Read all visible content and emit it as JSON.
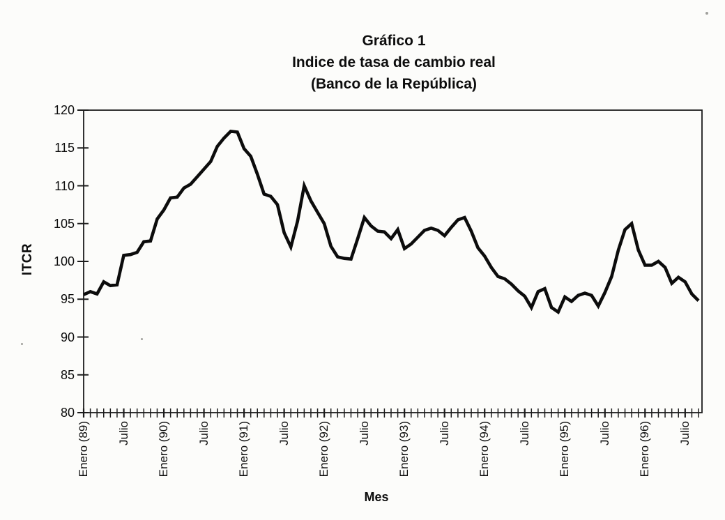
{
  "title": {
    "line1": "Gráfico 1",
    "line2": "Indice de tasa de cambio real",
    "line3": "(Banco de la República)"
  },
  "chart_data": {
    "type": "line",
    "title": "Gráfico 1",
    "subtitle": "Indice de tasa de cambio real (Banco de la República)",
    "xlabel": "Mes",
    "ylabel": "ITCR",
    "ylim": [
      80,
      120
    ],
    "yticks": [
      80,
      85,
      90,
      95,
      100,
      105,
      110,
      115,
      120
    ],
    "grid": false,
    "legend": "none",
    "x_start_month": "Enero 1989",
    "x_end_month": "Septiembre 1996",
    "x_minor_tick_unit": "month",
    "x_label_every_n_months": 6,
    "x_tick_labels": [
      "Enero (89)",
      "Julio",
      "Enero (90)",
      "Julio",
      "Enero (91)",
      "Julio",
      "Enero (92)",
      "Julio",
      "Enero (93)",
      "Julio",
      "Enero (94)",
      "Julio",
      "Enero (95)",
      "Julio",
      "Enero (96)",
      "Julio"
    ],
    "line_color": "#0c0c0c",
    "series": [
      {
        "name": "ITCR",
        "values": [
          95.6,
          96.0,
          95.7,
          97.3,
          96.8,
          96.9,
          100.8,
          100.9,
          101.2,
          102.6,
          102.7,
          105.6,
          106.8,
          108.4,
          108.5,
          109.7,
          110.2,
          111.2,
          112.2,
          113.2,
          115.2,
          116.3,
          117.2,
          117.1,
          114.9,
          113.9,
          111.5,
          108.9,
          108.6,
          107.5,
          103.8,
          101.9,
          105.3,
          110.0,
          108.0,
          106.5,
          105.0,
          102.0,
          100.6,
          100.4,
          100.3,
          103.0,
          105.8,
          104.7,
          104.0,
          103.9,
          103.0,
          104.2,
          101.7,
          102.3,
          103.2,
          104.1,
          104.4,
          104.1,
          103.4,
          104.5,
          105.5,
          105.8,
          104.0,
          101.8,
          100.7,
          99.2,
          98.0,
          97.7,
          97.0,
          96.1,
          95.4,
          93.9,
          96.0,
          96.4,
          93.9,
          93.3,
          95.3,
          94.7,
          95.5,
          95.8,
          95.5,
          94.1,
          95.9,
          98.0,
          101.5,
          104.2,
          105.0,
          101.5,
          99.5,
          99.5,
          100.0,
          99.2,
          97.1,
          97.9,
          97.3,
          95.7,
          94.8
        ]
      }
    ]
  },
  "colors": {
    "ink": "#0d0d0d",
    "frame": "#1c1c1c",
    "paper": "#fcfcfa"
  }
}
